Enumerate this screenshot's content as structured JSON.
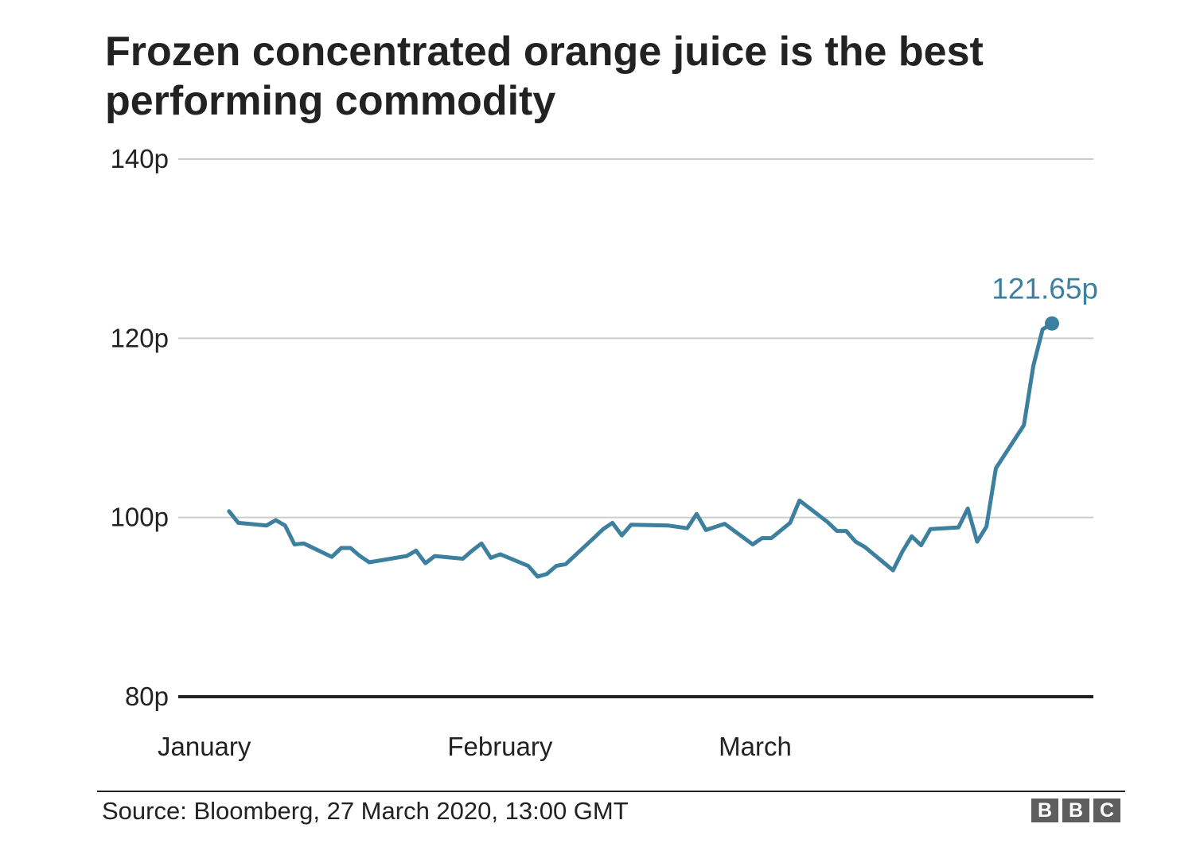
{
  "title": "Frozen concentrated orange juice is the best performing commodity",
  "source": "Source: Bloomberg, 27 March 2020, 13:00 GMT",
  "logo": {
    "letters": [
      "B",
      "B",
      "C"
    ],
    "color": "#5e5e5e"
  },
  "colors": {
    "line": "#3d7f9f",
    "grid": "#cccccc",
    "baseline": "#222222",
    "text": "#222222"
  },
  "chart_data": {
    "type": "line",
    "title": "Frozen concentrated orange juice is the best performing commodity",
    "xlabel": "",
    "ylabel": "",
    "ylim": [
      80,
      140
    ],
    "yticks": [
      80,
      100,
      120,
      140
    ],
    "ytick_labels": [
      "80p",
      "100p",
      "120p",
      "140p"
    ],
    "xlim": [
      "2020-01-01",
      "2020-03-30"
    ],
    "xticks": [
      {
        "date": "2020-01-01",
        "label": "January"
      },
      {
        "date": "2020-02-01",
        "label": "February"
      },
      {
        "date": "2020-03-01",
        "label": "March"
      }
    ],
    "grid": true,
    "series": [
      {
        "color": "#3d7f9f",
        "end_label": "121.65p",
        "points": [
          [
            "2020-01-02",
            100.7
          ],
          [
            "2020-01-03",
            99.4
          ],
          [
            "2020-01-06",
            99.1
          ],
          [
            "2020-01-07",
            99.7
          ],
          [
            "2020-01-08",
            99.1
          ],
          [
            "2020-01-09",
            97.0
          ],
          [
            "2020-01-10",
            97.1
          ],
          [
            "2020-01-13",
            95.6
          ],
          [
            "2020-01-14",
            96.6
          ],
          [
            "2020-01-15",
            96.6
          ],
          [
            "2020-01-16",
            95.7
          ],
          [
            "2020-01-17",
            95.0
          ],
          [
            "2020-01-21",
            95.7
          ],
          [
            "2020-01-22",
            96.3
          ],
          [
            "2020-01-23",
            94.9
          ],
          [
            "2020-01-24",
            95.7
          ],
          [
            "2020-01-27",
            95.4
          ],
          [
            "2020-01-28",
            96.3
          ],
          [
            "2020-01-29",
            97.1
          ],
          [
            "2020-01-30",
            95.5
          ],
          [
            "2020-01-31",
            95.9
          ],
          [
            "2020-02-03",
            94.6
          ],
          [
            "2020-02-04",
            93.4
          ],
          [
            "2020-02-05",
            93.7
          ],
          [
            "2020-02-06",
            94.6
          ],
          [
            "2020-02-07",
            94.8
          ],
          [
            "2020-02-10",
            97.7
          ],
          [
            "2020-02-11",
            98.7
          ],
          [
            "2020-02-12",
            99.4
          ],
          [
            "2020-02-13",
            98.0
          ],
          [
            "2020-02-14",
            99.2
          ],
          [
            "2020-02-18",
            99.1
          ],
          [
            "2020-02-20",
            98.8
          ],
          [
            "2020-02-21",
            100.4
          ],
          [
            "2020-02-22",
            98.6
          ],
          [
            "2020-02-24",
            99.3
          ],
          [
            "2020-02-27",
            97.0
          ],
          [
            "2020-02-28",
            97.7
          ],
          [
            "2020-02-29",
            97.7
          ],
          [
            "2020-03-02",
            99.4
          ],
          [
            "2020-03-03",
            101.9
          ],
          [
            "2020-03-06",
            99.5
          ],
          [
            "2020-03-07",
            98.5
          ],
          [
            "2020-03-08",
            98.5
          ],
          [
            "2020-03-09",
            97.3
          ],
          [
            "2020-03-10",
            96.7
          ],
          [
            "2020-03-13",
            94.1
          ],
          [
            "2020-03-14",
            96.2
          ],
          [
            "2020-03-15",
            97.9
          ],
          [
            "2020-03-16",
            96.9
          ],
          [
            "2020-03-17",
            98.7
          ],
          [
            "2020-03-20",
            98.9
          ],
          [
            "2020-03-21",
            101.0
          ],
          [
            "2020-03-22",
            97.3
          ],
          [
            "2020-03-23",
            99.0
          ],
          [
            "2020-03-24",
            105.5
          ],
          [
            "2020-03-27",
            110.3
          ],
          [
            "2020-03-28",
            116.9
          ],
          [
            "2020-03-29",
            121.0
          ],
          [
            "2020-03-30",
            121.65
          ]
        ]
      }
    ]
  }
}
